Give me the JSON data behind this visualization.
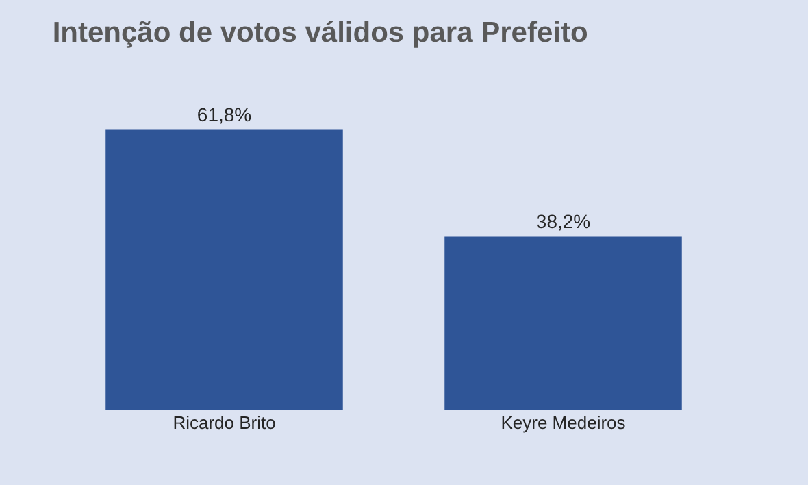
{
  "chart_data": {
    "type": "bar",
    "title": "Intenção de votos válidos para Prefeito",
    "categories": [
      "Ricardo Brito",
      "Keyre Medeiros"
    ],
    "values": [
      61.8,
      38.2
    ],
    "value_labels": [
      "61,8%",
      "38,2%"
    ],
    "color": "#2f5597",
    "grid": false,
    "legend": false
  }
}
